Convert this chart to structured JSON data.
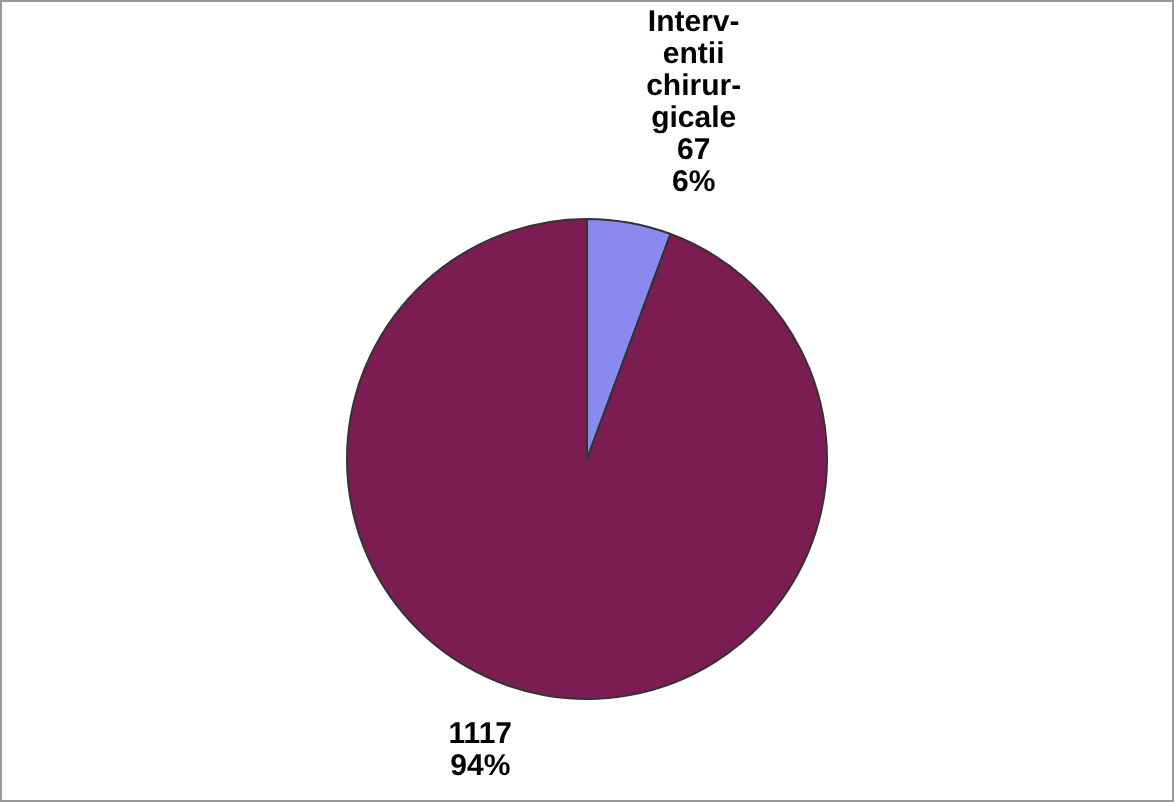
{
  "chart_data": {
    "type": "pie",
    "categories": [
      "Interv-entii chirur-gicale",
      null
    ],
    "values": [
      67,
      1117
    ],
    "colors": [
      "#8a8aee",
      "#7b1d52"
    ],
    "value_labels": [
      "67 6%",
      "1117 94%"
    ],
    "legend": false
  }
}
